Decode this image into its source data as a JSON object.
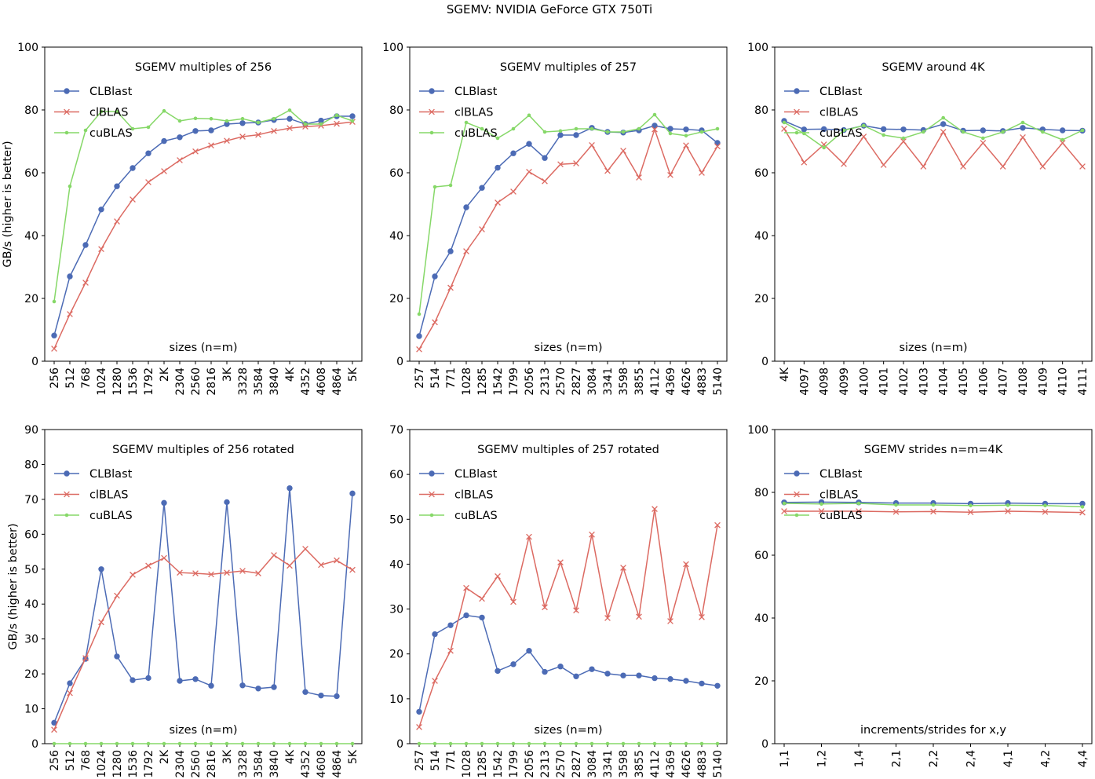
{
  "suptitle": "SGEMV: NVIDIA GeForce GTX 750Ti",
  "colors": {
    "CLBlast": "#4c6bb5",
    "clBLAS": "#dc6a62",
    "cuBLAS": "#86d868"
  },
  "chart_data": [
    {
      "type": "line",
      "title": "SGEMV multiples of 256",
      "xlabel": "sizes (n=m)",
      "ylabel": "GB/s (higher is better)",
      "ylim": [
        0,
        100
      ],
      "yticks": [
        "0",
        "20",
        "40",
        "60",
        "80",
        "100"
      ],
      "categories": [
        "256",
        "512",
        "768",
        "1024",
        "1280",
        "1536",
        "1792",
        "2K",
        "2304",
        "2560",
        "2816",
        "3K",
        "3328",
        "3584",
        "3840",
        "4K",
        "4352",
        "4608",
        "4864",
        "5K"
      ],
      "legend": "upper-left",
      "series": [
        {
          "name": "CLBlast",
          "marker": "circle",
          "values": [
            8.2,
            27.0,
            37.0,
            48.3,
            55.7,
            61.5,
            66.2,
            70.1,
            71.3,
            73.3,
            73.5,
            75.5,
            75.8,
            76.0,
            76.8,
            77.2,
            75.5,
            76.6,
            78.0,
            78.0
          ]
        },
        {
          "name": "clBLAS",
          "marker": "x",
          "values": [
            4.0,
            15.0,
            25.0,
            35.7,
            44.5,
            51.5,
            57.0,
            60.5,
            64.0,
            66.8,
            68.7,
            70.2,
            71.5,
            72.1,
            73.3,
            74.2,
            74.7,
            75.0,
            75.6,
            76.2
          ]
        },
        {
          "name": "cuBLAS",
          "marker": "dot",
          "values": [
            19.0,
            55.7,
            73.5,
            79.5,
            79.5,
            74.0,
            74.5,
            79.7,
            76.5,
            77.3,
            77.2,
            76.5,
            77.2,
            76.0,
            77.2,
            79.9,
            75.5,
            75.5,
            78.3,
            76.5
          ]
        }
      ]
    },
    {
      "type": "line",
      "title": "SGEMV multiples of 257",
      "xlabel": "sizes (n=m)",
      "ylabel": "",
      "ylim": [
        0,
        100
      ],
      "yticks": [
        "0",
        "20",
        "40",
        "60",
        "80",
        "100"
      ],
      "categories": [
        "257",
        "514",
        "771",
        "1028",
        "1285",
        "1542",
        "1799",
        "2056",
        "2313",
        "2570",
        "2827",
        "3084",
        "3341",
        "3598",
        "3855",
        "4112",
        "4369",
        "4626",
        "4883",
        "5140"
      ],
      "legend": "upper-left",
      "series": [
        {
          "name": "CLBlast",
          "marker": "circle",
          "values": [
            8.0,
            27.0,
            35.0,
            49.0,
            55.2,
            61.6,
            66.2,
            69.2,
            64.7,
            72.0,
            72.0,
            74.3,
            73.0,
            72.8,
            73.5,
            75.0,
            74.0,
            73.8,
            73.5,
            69.5
          ]
        },
        {
          "name": "clBLAS",
          "marker": "x",
          "values": [
            3.8,
            12.4,
            23.4,
            35.0,
            42.0,
            50.5,
            54.0,
            60.3,
            57.3,
            62.7,
            63.0,
            68.8,
            60.6,
            67.0,
            58.5,
            73.8,
            59.3,
            68.7,
            60.0,
            68.4
          ]
        },
        {
          "name": "cuBLAS",
          "marker": "dot",
          "values": [
            15.0,
            55.5,
            56.0,
            76.0,
            74.0,
            71.0,
            74.0,
            78.3,
            73.0,
            73.3,
            74.0,
            74.0,
            73.0,
            73.0,
            74.0,
            78.5,
            72.5,
            71.8,
            73.0,
            74.0
          ]
        }
      ]
    },
    {
      "type": "line",
      "title": "SGEMV around 4K",
      "xlabel": "sizes (n=m)",
      "ylabel": "",
      "ylim": [
        0,
        100
      ],
      "yticks": [
        "0",
        "20",
        "40",
        "60",
        "80",
        "100"
      ],
      "categories": [
        "4K",
        "4097",
        "4098",
        "4099",
        "4100",
        "4101",
        "4102",
        "4103",
        "4104",
        "4105",
        "4106",
        "4107",
        "4108",
        "4109",
        "4110",
        "4111"
      ],
      "legend": "upper-left",
      "series": [
        {
          "name": "CLBlast",
          "marker": "circle",
          "values": [
            76.5,
            73.8,
            73.9,
            73.6,
            75.0,
            73.9,
            73.8,
            73.6,
            75.5,
            73.4,
            73.5,
            73.3,
            74.3,
            73.8,
            73.5,
            73.4
          ]
        },
        {
          "name": "clBLAS",
          "marker": "x",
          "values": [
            74.0,
            63.3,
            69.0,
            62.8,
            71.5,
            62.5,
            70.0,
            62.0,
            73.0,
            62.0,
            69.5,
            62.0,
            71.3,
            62.0,
            69.5,
            62.0
          ]
        },
        {
          "name": "cuBLAS",
          "marker": "dot",
          "values": [
            76.0,
            72.5,
            68.0,
            73.5,
            75.0,
            72.0,
            71.0,
            73.0,
            77.5,
            73.0,
            71.0,
            73.0,
            76.0,
            73.0,
            70.5,
            73.5
          ]
        }
      ]
    },
    {
      "type": "line",
      "title": "SGEMV multiples of 256 rotated",
      "xlabel": "sizes (n=m)",
      "ylabel": "GB/s (higher is better)",
      "ylim": [
        0,
        90
      ],
      "yticks": [
        "0",
        "10",
        "20",
        "30",
        "40",
        "50",
        "60",
        "70",
        "80",
        "90"
      ],
      "categories": [
        "256",
        "512",
        "768",
        "1024",
        "1280",
        "1536",
        "1792",
        "2K",
        "2304",
        "2560",
        "2816",
        "3K",
        "3328",
        "3584",
        "3840",
        "4K",
        "4352",
        "4608",
        "4864",
        "5K"
      ],
      "legend": "upper-left",
      "series": [
        {
          "name": "CLBlast",
          "marker": "circle",
          "values": [
            6.0,
            17.3,
            24.3,
            50.0,
            25.0,
            18.2,
            18.8,
            69.0,
            18.0,
            18.5,
            16.6,
            69.2,
            16.7,
            15.8,
            16.2,
            73.2,
            14.8,
            13.8,
            13.6,
            71.7
          ]
        },
        {
          "name": "clBLAS",
          "marker": "x",
          "values": [
            4.0,
            14.5,
            24.5,
            34.8,
            42.4,
            48.4,
            51.0,
            53.2,
            49.0,
            48.8,
            48.5,
            49.0,
            49.5,
            48.8,
            54.0,
            51.0,
            55.8,
            51.2,
            52.5,
            49.8
          ]
        },
        {
          "name": "cuBLAS",
          "marker": "dot",
          "values": [
            0,
            0,
            0,
            0,
            0,
            0,
            0,
            0,
            0,
            0,
            0,
            0,
            0,
            0,
            0,
            0,
            0,
            0,
            0,
            0
          ]
        }
      ]
    },
    {
      "type": "line",
      "title": "SGEMV multiples of 257 rotated",
      "xlabel": "sizes (n=m)",
      "ylabel": "",
      "ylim": [
        0,
        70
      ],
      "yticks": [
        "0",
        "10",
        "20",
        "30",
        "40",
        "50",
        "60",
        "70"
      ],
      "categories": [
        "257",
        "514",
        "771",
        "1028",
        "1285",
        "1542",
        "1799",
        "2056",
        "2313",
        "2570",
        "2827",
        "3084",
        "3341",
        "3598",
        "3855",
        "4112",
        "4369",
        "4626",
        "4883",
        "5140"
      ],
      "legend": "upper-left",
      "series": [
        {
          "name": "CLBlast",
          "marker": "circle",
          "values": [
            7.1,
            24.4,
            26.4,
            28.6,
            28.1,
            16.2,
            17.7,
            20.7,
            16.0,
            17.2,
            15.0,
            16.6,
            15.6,
            15.2,
            15.2,
            14.6,
            14.4,
            14.0,
            13.4,
            12.9
          ]
        },
        {
          "name": "clBLAS",
          "marker": "x",
          "values": [
            3.7,
            14.0,
            20.7,
            34.7,
            32.3,
            37.3,
            31.6,
            46.1,
            30.4,
            40.4,
            29.7,
            46.6,
            28.0,
            39.2,
            28.3,
            52.3,
            27.3,
            40.0,
            28.2,
            48.7
          ]
        },
        {
          "name": "cuBLAS",
          "marker": "dot",
          "values": [
            0,
            0,
            0,
            0,
            0,
            0,
            0,
            0,
            0,
            0,
            0,
            0,
            0,
            0,
            0,
            0,
            0,
            0,
            0,
            0
          ]
        }
      ]
    },
    {
      "type": "line",
      "title": "SGEMV strides n=m=4K",
      "xlabel": "increments/strides for x,y",
      "ylabel": "",
      "ylim": [
        0,
        100
      ],
      "yticks": [
        "0",
        "20",
        "40",
        "60",
        "80",
        "100"
      ],
      "categories": [
        "1,1",
        "1,2",
        "1,4",
        "2,1",
        "2,2",
        "2,4",
        "4,1",
        "4,2",
        "4,4"
      ],
      "legend": "upper-left",
      "series": [
        {
          "name": "CLBlast",
          "marker": "circle",
          "values": [
            76.8,
            76.9,
            76.8,
            76.6,
            76.6,
            76.4,
            76.6,
            76.4,
            76.4
          ]
        },
        {
          "name": "clBLAS",
          "marker": "x",
          "values": [
            74.0,
            74.0,
            74.0,
            73.8,
            73.9,
            73.7,
            74.0,
            73.8,
            73.6
          ]
        },
        {
          "name": "cuBLAS",
          "marker": "dot",
          "values": [
            76.5,
            76.3,
            76.5,
            76.0,
            76.0,
            75.8,
            75.9,
            75.8,
            75.4
          ]
        }
      ]
    }
  ]
}
